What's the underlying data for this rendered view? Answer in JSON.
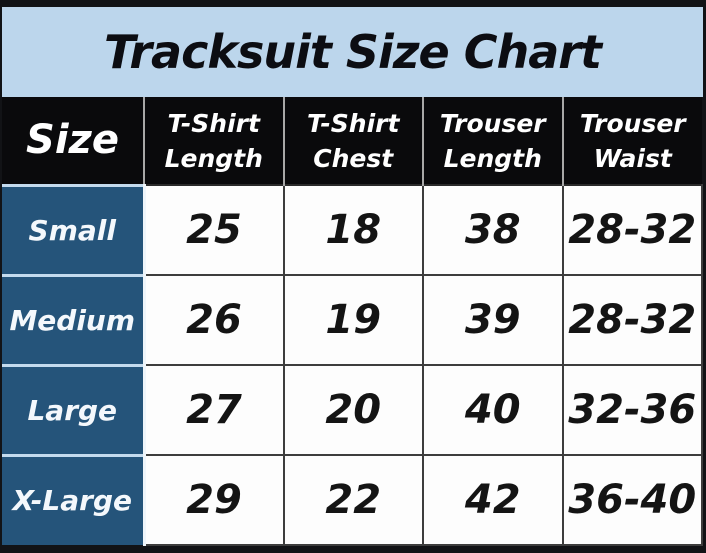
{
  "title": "Tracksuit Size Chart",
  "header": {
    "size": "Size",
    "cols": [
      {
        "line1": "T-Shirt",
        "line2": "Length"
      },
      {
        "line1": "T-Shirt",
        "line2": "Chest"
      },
      {
        "line1": "Trouser",
        "line2": "Length"
      },
      {
        "line1": "Trouser",
        "line2": "Waist"
      }
    ]
  },
  "chart_data": {
    "type": "table",
    "title": "Tracksuit Size Chart",
    "columns": [
      "Size",
      "T-Shirt Length",
      "T-Shirt Chest",
      "Trouser Length",
      "Trouser Waist"
    ],
    "rows": [
      [
        "Small",
        "25",
        "18",
        "38",
        "28-32"
      ],
      [
        "Medium",
        "26",
        "19",
        "39",
        "28-32"
      ],
      [
        "Large",
        "27",
        "20",
        "40",
        "32-36"
      ],
      [
        "X-Large",
        "29",
        "22",
        "42",
        "36-40"
      ]
    ]
  },
  "colors": {
    "title_bg": "#bcd6ec",
    "header_bg": "#0a0a0c",
    "size_bg": "#25547a",
    "frame_bg": "#121316",
    "value_cell_bg": "#fdfdfd",
    "cell_border": "#3d3d3d"
  }
}
